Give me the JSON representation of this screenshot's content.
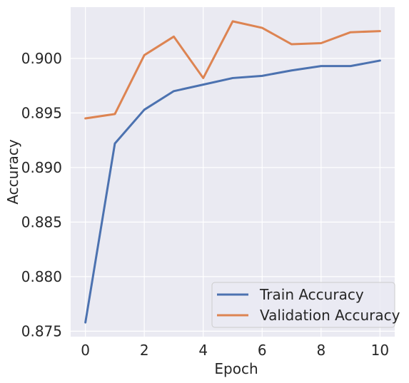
{
  "chart_data": {
    "type": "line",
    "title": "",
    "xlabel": "Epoch",
    "ylabel": "Accuracy",
    "x": [
      0,
      1,
      2,
      3,
      4,
      5,
      6,
      7,
      8,
      9,
      10
    ],
    "xlim": [
      -0.5,
      10.5
    ],
    "ylim": [
      0.8745,
      0.9047
    ],
    "xticks": [
      0,
      2,
      4,
      6,
      8,
      10
    ],
    "xtick_labels": [
      "0",
      "2",
      "4",
      "6",
      "8",
      "10"
    ],
    "yticks": [
      0.875,
      0.88,
      0.885,
      0.89,
      0.895,
      0.9
    ],
    "ytick_labels": [
      "0.875",
      "0.880",
      "0.885",
      "0.890",
      "0.895",
      "0.900"
    ],
    "grid": true,
    "legend_position": "lower-right",
    "background_color": "#eaeaf2",
    "grid_color": "#ffffff",
    "series": [
      {
        "name": "Train Accuracy",
        "color": "#4c72b0",
        "values": [
          0.8758,
          0.8922,
          0.8953,
          0.897,
          0.8976,
          0.8982,
          0.8984,
          0.8989,
          0.8993,
          0.8993,
          0.8998
        ]
      },
      {
        "name": "Validation Accuracy",
        "color": "#dd8452",
        "values": [
          0.8945,
          0.8949,
          0.9003,
          0.902,
          0.8982,
          0.9034,
          0.9028,
          0.9013,
          0.9014,
          0.9024,
          0.9025
        ]
      }
    ]
  }
}
